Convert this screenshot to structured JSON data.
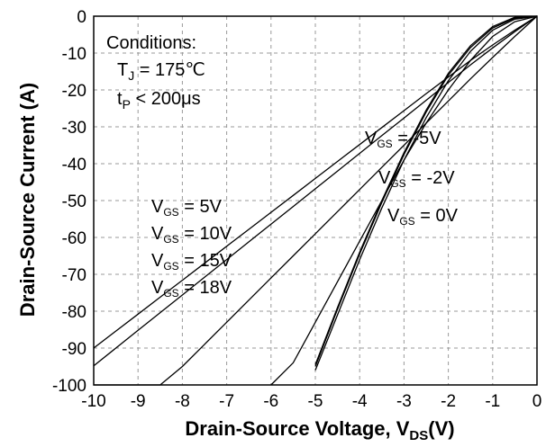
{
  "chart_data": {
    "type": "line",
    "title": "",
    "xlabel": "Drain-Source Voltage, V",
    "xlabel_sub": "DS",
    "xlabel_unit": "(V)",
    "ylabel": "Drain-Source Current",
    "ylabel_unit": "(A)",
    "xlim": [
      -10,
      0
    ],
    "ylim": [
      -100,
      0
    ],
    "x_ticks": [
      -10,
      -9,
      -8,
      -7,
      -6,
      -5,
      -4,
      -3,
      -2,
      -1,
      0
    ],
    "y_ticks": [
      -100,
      -90,
      -80,
      -70,
      -60,
      -50,
      -40,
      -30,
      -20,
      -10,
      0
    ],
    "grid": true,
    "conditions": {
      "heading": "Conditions:",
      "tj": "T",
      "tj_sub": "J",
      "tj_value": " = 175℃",
      "tp": "t",
      "tp_sub": "P",
      "tp_value": " < 200μs"
    },
    "series": [
      {
        "name": "VGS = -5V",
        "label_text": "V",
        "label_sub": "GS",
        "label_value": " = -5V",
        "x": [
          0,
          -0.5,
          -1,
          -1.5,
          -2,
          -2.5,
          -3,
          -3.5,
          -4,
          -4.5,
          -5,
          -5.5,
          -6,
          -6.5,
          -7,
          -7.5,
          -8,
          -8.5,
          -9,
          -9.5,
          -10
        ],
        "y": [
          0,
          -3.8,
          -7.8,
          -12,
          -16.5,
          -21,
          -25.6,
          -30.2,
          -34.8,
          -39.4,
          -44,
          -48.6,
          -53.2,
          -57.8,
          -62.4,
          -67,
          -71.6,
          -76.2,
          -80.8,
          -85.4,
          -90
        ]
      },
      {
        "name": "VGS = -2V",
        "label_text": "V",
        "label_sub": "GS",
        "label_value": " = -2V",
        "x": [
          0,
          -0.5,
          -1,
          -1.5,
          -2,
          -2.5,
          -3,
          -3.5,
          -4,
          -4.5,
          -5,
          -5.5,
          -6,
          -6.5,
          -7,
          -7.5,
          -8,
          -8.5,
          -9,
          -9.5,
          -10
        ],
        "y": [
          0,
          -4.2,
          -8.6,
          -13.2,
          -18,
          -22.8,
          -27.6,
          -32.4,
          -37.2,
          -42,
          -46.8,
          -51.6,
          -56.4,
          -61.2,
          -66,
          -70.8,
          -75.6,
          -80.4,
          -85.2,
          -90,
          -94.8
        ]
      },
      {
        "name": "VGS = 0V",
        "label_text": "V",
        "label_sub": "GS",
        "label_value": " = 0V",
        "x": [
          0,
          -0.5,
          -1,
          -1.5,
          -2,
          -2.5,
          -3,
          -3.5,
          -4,
          -4.5,
          -5,
          -5.5,
          -6,
          -6.5,
          -7,
          -7.5,
          -8,
          -8.5,
          -9,
          -9.5,
          -10
        ],
        "y": [
          0,
          -5.5,
          -11.2,
          -17,
          -23,
          -29,
          -35,
          -41,
          -47,
          -53,
          -59,
          -65,
          -71,
          -77,
          -83,
          -89,
          -95,
          -100,
          -100,
          -100,
          -100
        ]
      },
      {
        "name": "VGS = 5V",
        "label_text": "V",
        "label_sub": "GS",
        "label_value": " = 5V",
        "x": [
          0,
          -0.5,
          -1,
          -1.5,
          -2,
          -2.5,
          -3,
          -3.5,
          -4,
          -4.5,
          -5,
          -5.5,
          -6
        ],
        "y": [
          0,
          -1.5,
          -5.5,
          -12,
          -20,
          -29,
          -39,
          -50,
          -61,
          -72,
          -83,
          -94,
          -100
        ]
      },
      {
        "name": "VGS = 10V",
        "label_text": "V",
        "label_sub": "GS",
        "label_value": " = 10V",
        "x": [
          0,
          -0.5,
          -1,
          -1.5,
          -2,
          -2.5,
          -3,
          -3.5,
          -4,
          -4.5,
          -5
        ],
        "y": [
          0,
          -0.8,
          -3.8,
          -9.5,
          -17.5,
          -27.5,
          -39,
          -52,
          -66,
          -81,
          -96
        ]
      },
      {
        "name": "VGS = 15V",
        "label_text": "V",
        "label_sub": "GS",
        "label_value": " = 15V",
        "x": [
          0,
          -0.5,
          -1,
          -1.5,
          -2,
          -2.5,
          -3,
          -3.5,
          -4,
          -4.5,
          -5
        ],
        "y": [
          0,
          -0.5,
          -3.2,
          -8.5,
          -16,
          -26,
          -37.5,
          -50.5,
          -64.5,
          -79.5,
          -95
        ]
      },
      {
        "name": "VGS = 18V",
        "label_text": "V",
        "label_sub": "GS",
        "label_value": " = 18V",
        "x": [
          0,
          -0.5,
          -1,
          -1.5,
          -2,
          -2.5,
          -3,
          -3.5,
          -4,
          -4.5,
          -5
        ],
        "y": [
          0,
          -0.3,
          -2.8,
          -8,
          -15.5,
          -25.5,
          -37,
          -50,
          -64,
          -79,
          -94.5
        ]
      }
    ]
  }
}
